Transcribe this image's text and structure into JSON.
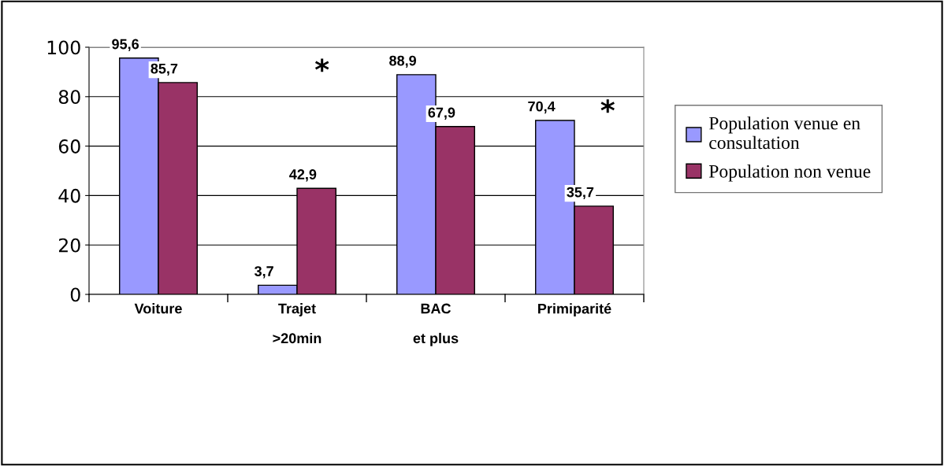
{
  "chart_data": {
    "type": "bar",
    "categories": [
      "Voiture",
      "Trajet\n>20min",
      "BAC\net plus",
      "Primiparité"
    ],
    "series": [
      {
        "name": "Population venue en\nconsultation",
        "color": "#9999ff",
        "values": [
          95.6,
          3.7,
          88.9,
          70.4
        ],
        "value_labels": [
          "95,6",
          "3,7",
          "88,9",
          "70,4"
        ]
      },
      {
        "name": "Population non venue",
        "color": "#993366",
        "values": [
          85.7,
          42.9,
          67.9,
          35.7
        ],
        "value_labels": [
          "85,7",
          "42,9",
          "67,9",
          "35,7"
        ]
      }
    ],
    "ylim": [
      0,
      100
    ],
    "yticks": [
      0,
      20,
      40,
      60,
      80,
      100
    ],
    "grid": "y",
    "legend": "right",
    "annotations": [
      "*",
      "*"
    ]
  }
}
